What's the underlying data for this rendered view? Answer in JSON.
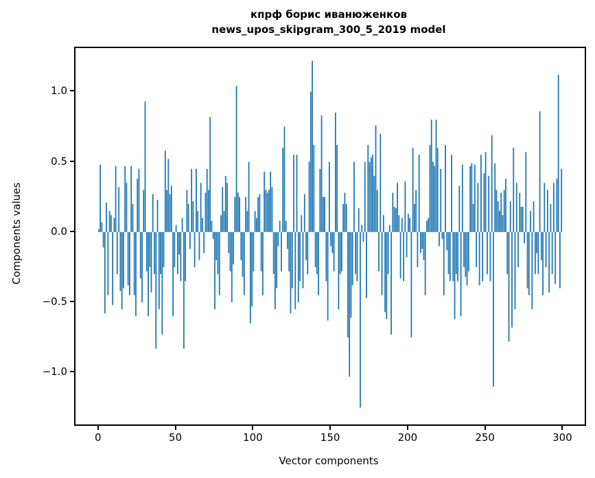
{
  "figure": {
    "title_line1": "кпрф борис иванюженков",
    "title_line2": "news_upos_skipgram_300_5_2019 model"
  },
  "chart_data": {
    "type": "bar",
    "title": "кпрф борис иванюженков\nnews_upos_skipgram_300_5_2019 model",
    "xlabel": "Vector components",
    "ylabel": "Components values",
    "bar_color": "#1f77b4",
    "grid": false,
    "legend_position": "none",
    "x_start": 0,
    "xticks": [
      0,
      50,
      100,
      150,
      200,
      250,
      300
    ],
    "yticks": [
      -1.0,
      -0.5,
      0.0,
      0.5,
      1.0
    ],
    "ytick_labels": [
      "−1.0",
      "−0.5",
      "0.0",
      "0.5",
      "1.0"
    ],
    "xtick_labels": [
      "0",
      "50",
      "100",
      "150",
      "200",
      "250",
      "300"
    ],
    "xlim": [
      -15,
      314
    ],
    "ylim": [
      -1.37,
      1.31
    ],
    "values": [
      0.02,
      0.48,
      0.07,
      -0.11,
      -0.58,
      0.21,
      -0.45,
      0.15,
      0.12,
      -0.52,
      0.1,
      0.47,
      -0.3,
      0.32,
      -0.42,
      -0.55,
      -0.4,
      0.47,
      0.35,
      -0.38,
      -0.45,
      0.47,
      0.2,
      -0.45,
      -0.6,
      0.38,
      0.45,
      -0.33,
      -0.5,
      0.3,
      0.93,
      -0.28,
      -0.6,
      -0.25,
      -0.43,
      0.27,
      -0.3,
      -0.83,
      0.23,
      -0.55,
      -0.3,
      -0.73,
      -0.25,
      0.58,
      0.3,
      0.52,
      0.27,
      0.33,
      -0.6,
      -0.25,
      0.05,
      -0.3,
      -0.16,
      -0.35,
      0.1,
      -0.83,
      -0.35,
      0.3,
      0.2,
      -0.12,
      0.45,
      0.22,
      -0.25,
      0.45,
      0.15,
      -0.2,
      0.35,
      0.1,
      -0.15,
      0.28,
      0.45,
      0.3,
      0.82,
      0.08,
      -0.05,
      -0.55,
      -0.2,
      -0.3,
      -0.45,
      0.12,
      0.32,
      0.15,
      0.4,
      0.35,
      -0.15,
      -0.28,
      -0.5,
      -0.23,
      0.25,
      1.04,
      0.28,
      0.25,
      -0.2,
      -0.32,
      -0.45,
      0.25,
      0.15,
      0.5,
      -0.65,
      -0.53,
      -0.28,
      0.15,
      0.1,
      0.25,
      0.27,
      -0.28,
      -0.45,
      0.43,
      0.3,
      0.28,
      0.3,
      0.43,
      0.32,
      -0.3,
      -0.55,
      -0.4,
      -0.1,
      0.08,
      -0.28,
      0.6,
      0.75,
      0.08,
      -0.12,
      -0.28,
      -0.58,
      -0.4,
      0.55,
      -0.55,
      0.55,
      -0.5,
      -0.35,
      0.12,
      -0.4,
      0.27,
      -0.2,
      -0.3,
      0.5,
      1.0,
      1.22,
      0.62,
      -0.25,
      -0.3,
      -0.45,
      0.45,
      0.83,
      0.25,
      0.25,
      -0.35,
      -0.63,
      0.5,
      -0.1,
      -0.15,
      -0.28,
      0.85,
      0.62,
      -0.55,
      -0.3,
      -0.28,
      0.2,
      0.28,
      0.2,
      -0.75,
      -1.03,
      -0.61,
      -0.38,
      0.5,
      -0.3,
      -0.35,
      0.17,
      -1.25,
      0.05,
      -0.07,
      0.5,
      -0.47,
      0.62,
      0.5,
      0.53,
      0.55,
      0.4,
      0.76,
      0.3,
      -0.28,
      0.7,
      -0.45,
      0.12,
      -0.57,
      -0.62,
      -0.3,
      0.05,
      -0.73,
      0.28,
      0.18,
      0.17,
      0.35,
      0.12,
      -0.33,
      0.1,
      -0.35,
      0.36,
      -0.18,
      0.13,
      0.1,
      -0.75,
      0.6,
      0.2,
      0.3,
      -0.25,
      0.55,
      -0.15,
      -0.12,
      -0.2,
      -0.45,
      0.08,
      0.1,
      0.62,
      0.8,
      0.5,
      0.47,
      0.8,
      0.6,
      -0.1,
      0.45,
      -0.05,
      -0.45,
      0.62,
      -0.13,
      -0.3,
      -0.35,
      0.55,
      -0.35,
      -0.62,
      -0.3,
      -0.35,
      0.33,
      -0.6,
      0.48,
      -0.25,
      -0.32,
      -0.38,
      -0.28,
      0.47,
      0.49,
      0.2,
      0.48,
      -0.25,
      0.35,
      -0.38,
      0.55,
      -0.35,
      0.42,
      0.57,
      -0.3,
      0.4,
      -0.35,
      0.69,
      -1.1,
      0.49,
      0.3,
      0.22,
      0.15,
      0.28,
      0.12,
      0.3,
      0.38,
      -0.3,
      -0.78,
      0.22,
      -0.68,
      0.6,
      -0.55,
      0.35,
      -0.25,
      0.28,
      0.18,
      0.18,
      -0.08,
      0.57,
      -0.4,
      -0.45,
      0.15,
      -0.55,
      0.22,
      -0.3,
      -0.15,
      -0.3,
      0.86,
      -0.2,
      -0.45,
      0.35,
      -0.25,
      0.3,
      -0.43,
      0.2,
      -0.3,
      0.35,
      -0.37,
      0.38,
      1.12,
      -0.4,
      0.45
    ]
  }
}
